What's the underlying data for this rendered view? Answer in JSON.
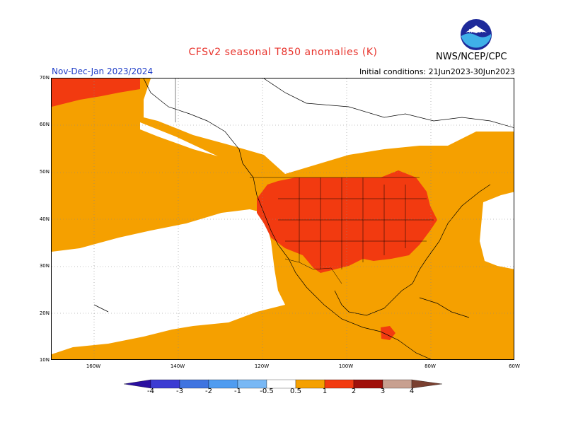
{
  "title": "CFSv2 seasonal T850 anomalies (K)",
  "period": "Nov-Dec-Jan 2023/2024",
  "initial_conditions": "Initial conditions: 21Jun2023-30Jun2023",
  "agency": "NWS/NCEP/CPC",
  "logo_text": "NOAA",
  "lat_labels": [
    "70N",
    "60N",
    "50N",
    "40N",
    "30N",
    "20N",
    "10N"
  ],
  "lon_labels": [
    "160W",
    "140W",
    "120W",
    "100W",
    "80W",
    "60W"
  ],
  "colorbar_labels": [
    "-4",
    "-3",
    "-2",
    "-1",
    "-0.5",
    "0.5",
    "1",
    "2",
    "3",
    "4"
  ],
  "colors": {
    "c_m4": "#2a0fa0",
    "c_m3": "#3c3cd2",
    "c_m2": "#3f74e0",
    "c_m1": "#4f9cf0",
    "c_m05": "#78b8f5",
    "c_neutral": "#ffffff",
    "c_p05": "#f5a000",
    "c_p1": "#f23a10",
    "c_p2": "#c0180a",
    "c_p3": "#8a0505",
    "c_p4": "#c8a090",
    "c_p5": "#7a4030"
  }
}
